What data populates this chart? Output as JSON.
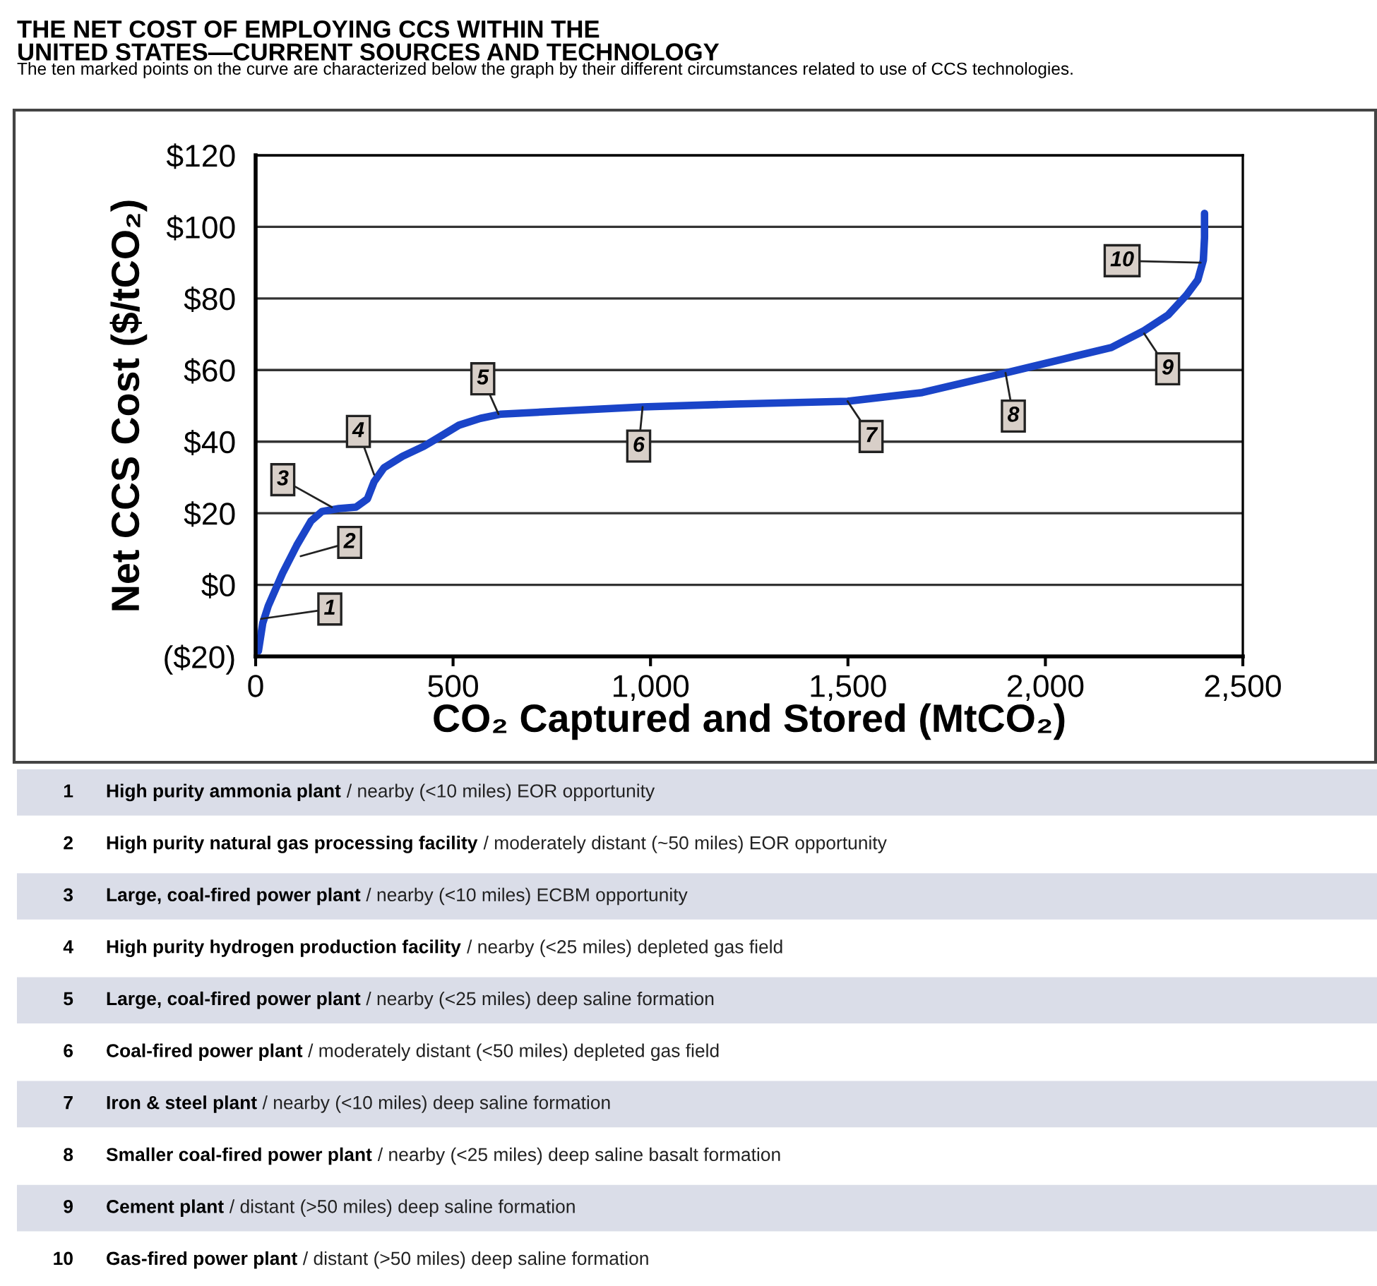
{
  "chart_data": {
    "type": "line",
    "title": "THE NET COST OF EMPLOYING CCS WITHIN THE\nUNITED STATES—CURRENT SOURCES AND TECHNOLOGY",
    "subtitle": "The ten marked points on the curve are characterized below the graph by their different circumstances related to use of CCS technologies.",
    "xlabel": "CO₂ Captured and Stored (MtCO₂)",
    "ylabel": "Net CCS Cost ($/tCO₂)",
    "x": [
      7,
      18,
      32,
      68,
      104,
      140,
      168,
      211,
      254,
      283,
      300,
      325,
      372,
      426,
      461,
      515,
      569,
      622,
      980,
      1212,
      1499,
      1688,
      1899,
      2046,
      2167,
      2250,
      2311,
      2357,
      2386,
      2400,
      2403,
      2403
    ],
    "series": [
      {
        "color": "#1a44c8",
        "values": [
          -18.5,
          -10.7,
          -5.9,
          3.2,
          11,
          17.8,
          20.5,
          21.3,
          21.7,
          24,
          28.8,
          32.7,
          35.9,
          38.7,
          41,
          44.6,
          46.5,
          47.7,
          49.7,
          50.5,
          51.3,
          53.7,
          59.2,
          63.1,
          66.3,
          71,
          75.4,
          80.9,
          85.2,
          90.7,
          97,
          103.8
        ]
      }
    ],
    "xlim": [
      0,
      2500
    ],
    "xticks": [
      0,
      500,
      {
        "value": 1000,
        "label": "1,000"
      },
      {
        "value": 1500,
        "label": "1,500"
      },
      {
        "value": 2000,
        "label": "2,000"
      },
      {
        "value": 2500,
        "label": "2,500"
      }
    ],
    "ylim": [
      -20,
      120
    ],
    "yticks": [
      {
        "value": -20,
        "label": "($20)"
      },
      {
        "value": 0,
        "label": "$0"
      },
      {
        "value": 20,
        "label": "$20"
      },
      {
        "value": 40,
        "label": "$40"
      },
      {
        "value": 60,
        "label": "$60"
      },
      {
        "value": 80,
        "label": "$80"
      },
      {
        "value": 100,
        "label": "$100"
      },
      {
        "value": 120,
        "label": "$120"
      }
    ],
    "grid": "y",
    "marker": "none",
    "line_style": "solid",
    "annotations": [
      {
        "text": "1",
        "x": 14,
        "y": -9.5
      },
      {
        "text": "2",
        "x": 114,
        "y": 8
      },
      {
        "text": "3",
        "x": 193,
        "y": 21.7
      },
      {
        "text": "4",
        "x": 300,
        "y": 30.8
      },
      {
        "text": "5",
        "x": 615,
        "y": 47.7
      },
      {
        "text": "6",
        "x": 980,
        "y": 49.7
      },
      {
        "text": "7",
        "x": 1499,
        "y": 51.3
      },
      {
        "text": "8",
        "x": 1899,
        "y": 59.2
      },
      {
        "text": "9",
        "x": 2250,
        "y": 70.2
      },
      {
        "text": "10",
        "x": 2393,
        "y": 90
      },
      "1 High purity ammonia plant / nearby (<10 miles) EOR opportunity",
      "2 High purity natural gas processing facility / moderately distant (~50 miles) EOR opportunity",
      "3 Large, coal-fired power plant / nearby (<10 miles) ECBM opportunity",
      "4 High purity hydrogen production facility / nearby (<25 miles) depleted gas field",
      "5 Large, coal-fired power plant / nearby (<25 miles) deep saline formation",
      "6 Coal-fired power plant / moderately distant (<50 miles) depleted gas field",
      "7 Iron & steel plant / nearby (<10 miles) deep saline formation",
      "8 Smaller coal-fired power plant / nearby (<25 miles) deep saline basalt formation",
      "9 Cement plant / distant (>50 miles) deep saline formation",
      "10 Gas-fired power plant / distant (>50 miles) deep saline formation"
    ]
  }
}
